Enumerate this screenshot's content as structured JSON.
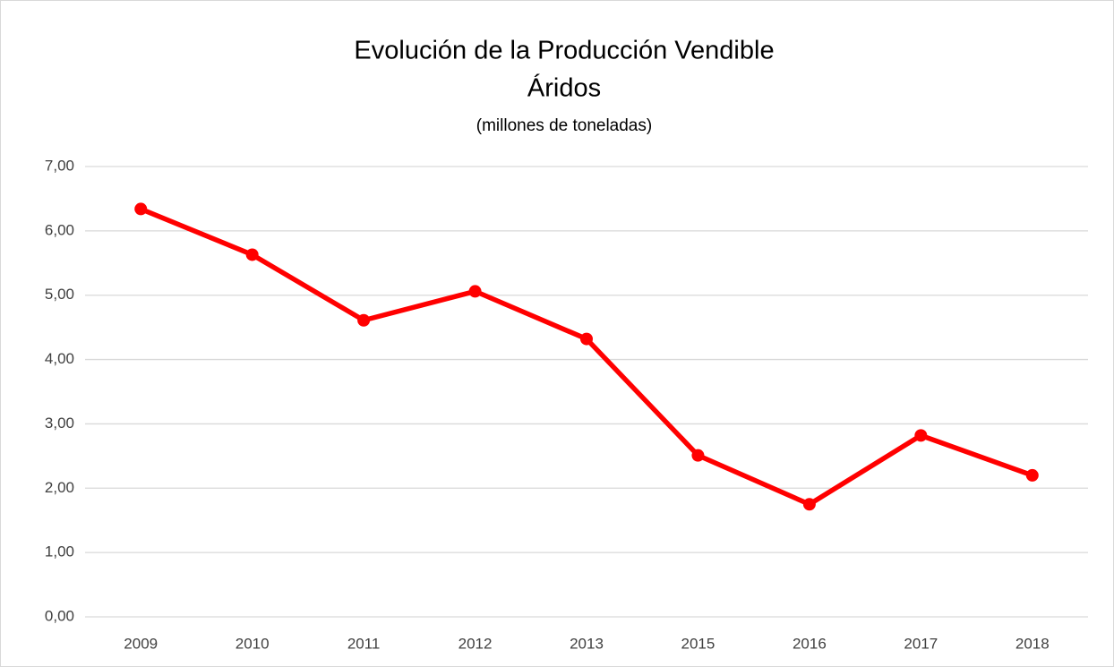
{
  "chart_data": {
    "type": "line",
    "title": [
      "Evolución de la Producción Vendible",
      "Áridos"
    ],
    "subtitle": "(millones de toneladas)",
    "categories": [
      "2009",
      "2010",
      "2011",
      "2012",
      "2013",
      "2015",
      "2016",
      "2017",
      "2018"
    ],
    "values": [
      6.34,
      5.63,
      4.61,
      5.06,
      4.32,
      2.51,
      1.75,
      2.82,
      2.2
    ],
    "color": "#ff0000",
    "ylim": [
      0,
      7
    ],
    "yticks": [
      {
        "value": 0,
        "label": "0,00"
      },
      {
        "value": 1,
        "label": "1,00"
      },
      {
        "value": 2,
        "label": "2,00"
      },
      {
        "value": 3,
        "label": "3,00"
      },
      {
        "value": 4,
        "label": "4,00"
      },
      {
        "value": 5,
        "label": "5,00"
      },
      {
        "value": 6,
        "label": "6,00"
      },
      {
        "value": 7,
        "label": "7,00"
      }
    ],
    "grid": true
  }
}
